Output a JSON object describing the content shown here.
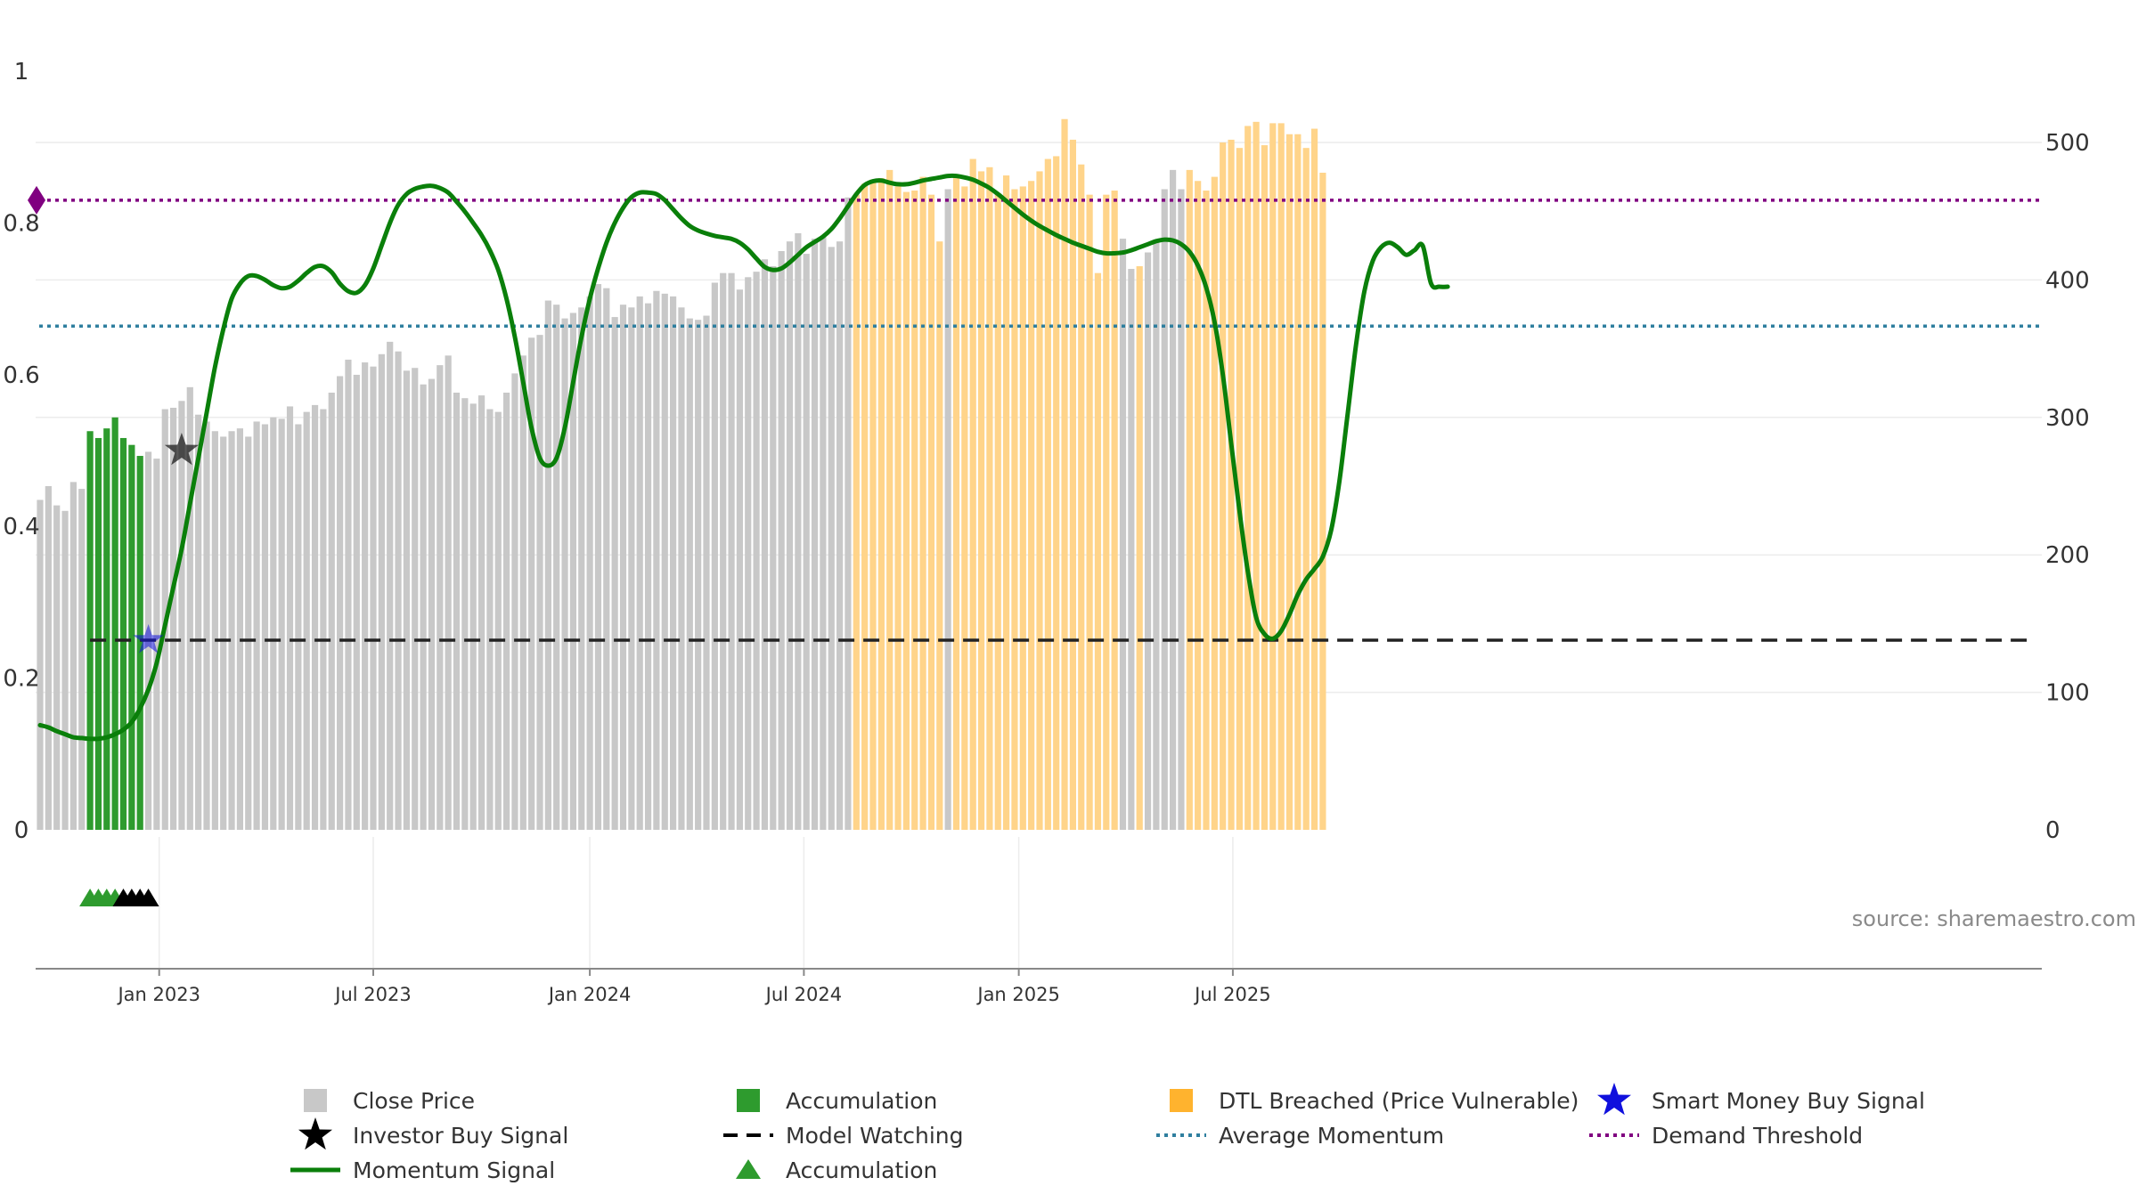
{
  "chart_data": {
    "type": "bar",
    "title": "",
    "source_text": "source: sharemaestro.com",
    "x_ticks": [
      "Jan 2023",
      "Jul 2023",
      "Jan 2024",
      "Jul 2024",
      "Jan 2025",
      "Jul 2025"
    ],
    "left_axis": {
      "ticks": [
        "0",
        "0.2",
        "0.4",
        "0.6",
        "0.8",
        "1"
      ],
      "ylim": [
        0,
        1
      ]
    },
    "right_axis": {
      "ticks": [
        "0",
        "100",
        "200",
        "300",
        "400",
        "500"
      ],
      "ylim": [
        0,
        500
      ]
    },
    "grid": true,
    "legend_position": "bottom",
    "colors": {
      "close_price": "#c8c8c8",
      "accumulation": "#2e9b2e",
      "dtl_breached": "#ffd48a",
      "momentum": "#0a7f0a",
      "average_momentum": "#2f7f9f",
      "demand_threshold": "#800080",
      "model_watching": "#222222",
      "smart_money": "#1010dd",
      "investor_buy": "#111111"
    },
    "bar_states": [
      "C",
      "C",
      "C",
      "C",
      "C",
      "C",
      "A",
      "A",
      "A",
      "A",
      "A",
      "A",
      "A",
      "C",
      "C",
      "C",
      "C",
      "C",
      "C",
      "C",
      "C",
      "C",
      "C",
      "C",
      "C",
      "C",
      "C",
      "C",
      "C",
      "C",
      "C",
      "C",
      "C",
      "C",
      "C",
      "C",
      "C",
      "C",
      "C",
      "C",
      "C",
      "C",
      "C",
      "C",
      "C",
      "C",
      "C",
      "C",
      "C",
      "C",
      "C",
      "C",
      "C",
      "C",
      "C",
      "C",
      "C",
      "C",
      "C",
      "C",
      "C",
      "C",
      "C",
      "C",
      "C",
      "C",
      "C",
      "C",
      "C",
      "C",
      "C",
      "C",
      "C",
      "C",
      "C",
      "C",
      "C",
      "C",
      "C",
      "C",
      "C",
      "C",
      "C",
      "C",
      "C",
      "C",
      "C",
      "C",
      "C",
      "C",
      "C",
      "C",
      "C",
      "C",
      "C",
      "C",
      "C",
      "C",
      "D",
      "D",
      "D",
      "D",
      "D",
      "D",
      "D",
      "D",
      "D",
      "D",
      "D",
      "C",
      "D",
      "D",
      "D",
      "D",
      "D",
      "D",
      "D",
      "D",
      "D",
      "D",
      "D",
      "D",
      "D",
      "D",
      "D",
      "D",
      "D",
      "D",
      "D",
      "D",
      "C",
      "C",
      "D",
      "C",
      "C",
      "C",
      "C",
      "C",
      "D",
      "D",
      "D",
      "D",
      "D",
      "D",
      "D",
      "D",
      "D",
      "D",
      "D",
      "D",
      "D",
      "D",
      "D",
      "D",
      "D",
      "D",
      "D",
      "D",
      "D",
      "D",
      "D",
      "D"
    ],
    "close_price": [
      240,
      250,
      236,
      232,
      253,
      248,
      290,
      285,
      292,
      300,
      285,
      280,
      272,
      275,
      270,
      306,
      307,
      312,
      322,
      302,
      297,
      290,
      286,
      290,
      292,
      286,
      297,
      295,
      300,
      299,
      308,
      295,
      304,
      309,
      306,
      318,
      330,
      342,
      331,
      340,
      337,
      346,
      355,
      348,
      334,
      336,
      324,
      328,
      338,
      345,
      318,
      314,
      310,
      316,
      306,
      304,
      318,
      332,
      345,
      358,
      360,
      385,
      382,
      372,
      376,
      380,
      388,
      397,
      394,
      373,
      382,
      380,
      388,
      383,
      392,
      390,
      388,
      380,
      372,
      371,
      374,
      398,
      405,
      405,
      393,
      402,
      406,
      415,
      410,
      421,
      428,
      434,
      419,
      430,
      432,
      424,
      428,
      460,
      462,
      470,
      473,
      474,
      480,
      468,
      464,
      465,
      475,
      462,
      428,
      466,
      474,
      468,
      488,
      479,
      482,
      463,
      476,
      466,
      468,
      472,
      479,
      488,
      490,
      517,
      502,
      484,
      462,
      405,
      462,
      465,
      430,
      408,
      410,
      420,
      428,
      466,
      480,
      466,
      480,
      472,
      465,
      475,
      500,
      502,
      496,
      512,
      515,
      498,
      514,
      514,
      506,
      506,
      496,
      510,
      478
    ],
    "momentum": [
      0.138,
      0.135,
      0.13,
      0.126,
      0.122,
      0.121,
      0.12,
      0.12,
      0.122,
      0.126,
      0.132,
      0.142,
      0.16,
      0.185,
      0.22,
      0.27,
      0.32,
      0.37,
      0.43,
      0.49,
      0.55,
      0.61,
      0.66,
      0.7,
      0.72,
      0.73,
      0.73,
      0.725,
      0.718,
      0.714,
      0.716,
      0.724,
      0.734,
      0.742,
      0.743,
      0.735,
      0.72,
      0.71,
      0.708,
      0.718,
      0.74,
      0.77,
      0.8,
      0.824,
      0.838,
      0.845,
      0.848,
      0.849,
      0.846,
      0.84,
      0.828,
      0.815,
      0.8,
      0.784,
      0.764,
      0.738,
      0.7,
      0.65,
      0.59,
      0.53,
      0.49,
      0.48,
      0.49,
      0.53,
      0.59,
      0.65,
      0.7,
      0.74,
      0.774,
      0.8,
      0.82,
      0.834,
      0.84,
      0.84,
      0.838,
      0.83,
      0.818,
      0.806,
      0.796,
      0.79,
      0.786,
      0.783,
      0.781,
      0.779,
      0.774,
      0.765,
      0.753,
      0.742,
      0.738,
      0.74,
      0.748,
      0.758,
      0.768,
      0.775,
      0.782,
      0.792,
      0.806,
      0.822,
      0.838,
      0.85,
      0.855,
      0.856,
      0.853,
      0.851,
      0.851,
      0.853,
      0.856,
      0.858,
      0.86,
      0.862,
      0.862,
      0.86,
      0.857,
      0.852,
      0.846,
      0.838,
      0.829,
      0.82,
      0.811,
      0.803,
      0.796,
      0.79,
      0.784,
      0.779,
      0.774,
      0.77,
      0.766,
      0.762,
      0.76,
      0.76,
      0.761,
      0.764,
      0.768,
      0.772,
      0.776,
      0.778,
      0.777,
      0.772,
      0.762,
      0.744,
      0.715,
      0.67,
      0.6,
      0.51,
      0.42,
      0.34,
      0.28,
      0.258,
      0.252,
      0.262,
      0.284,
      0.31,
      0.33,
      0.344,
      0.36,
      0.395,
      0.46,
      0.55,
      0.64,
      0.71,
      0.75,
      0.768,
      0.774,
      0.768,
      0.758,
      0.764,
      0.77,
      0.72,
      0.716,
      0.716
    ],
    "reference_lines": {
      "demand_threshold": 0.83,
      "average_momentum": 0.664,
      "model_watching": 0.25
    },
    "markers": {
      "investor_buy": {
        "bar": 17,
        "y": 0.5
      },
      "smart_money_buy": {
        "bar": 13,
        "y": 0.25
      },
      "demand_diamond": {
        "bar": 0,
        "y": 0.83
      },
      "accumulation_triangles": {
        "green_bars": [
          6,
          7,
          8,
          9
        ],
        "black_bars": [
          10,
          11,
          12,
          13
        ]
      }
    },
    "legend": [
      {
        "label": "Close Price",
        "key": "close_price"
      },
      {
        "label": "Accumulation",
        "key": "accumulation_bar"
      },
      {
        "label": "DTL Breached (Price Vulnerable)",
        "key": "dtl"
      },
      {
        "label": "Smart Money Buy Signal",
        "key": "smart_money"
      },
      {
        "label": "Investor Buy Signal",
        "key": "investor_buy"
      },
      {
        "label": "Model Watching",
        "key": "model_watching"
      },
      {
        "label": "Average Momentum",
        "key": "average_momentum"
      },
      {
        "label": "Demand Threshold",
        "key": "demand_threshold"
      },
      {
        "label": "Momentum Signal",
        "key": "momentum"
      },
      {
        "label": "Accumulation",
        "key": "accumulation_triangle"
      }
    ]
  }
}
